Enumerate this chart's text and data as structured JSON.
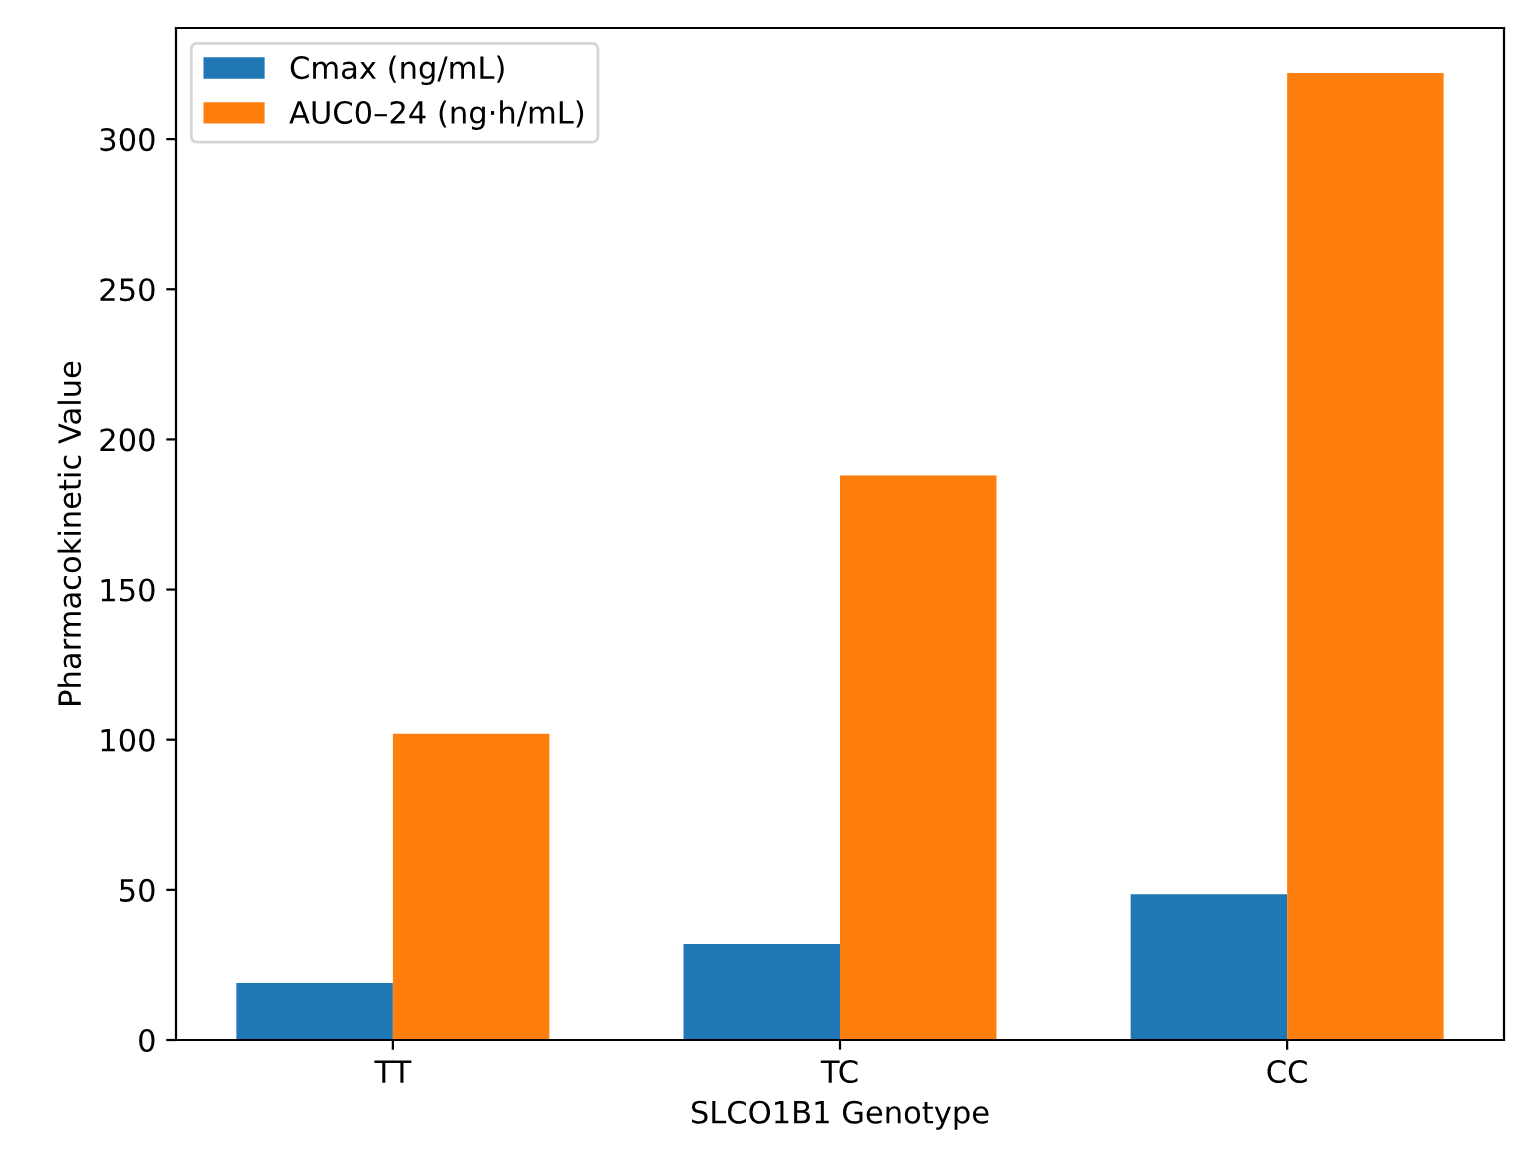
{
  "chart_data": {
    "type": "bar",
    "xlabel": "SLCO1B1 Genotype",
    "ylabel": "Pharmacokinetic Value",
    "categories": [
      "TT",
      "TC",
      "CC"
    ],
    "series": [
      {
        "name": "Cmax (ng/mL)",
        "color": "#1f77b4",
        "values": [
          19,
          32,
          48.5
        ]
      },
      {
        "name": "AUC0–24 (ng·h/mL)",
        "color": "#ff7f0e",
        "values": [
          102,
          188,
          322
        ]
      }
    ],
    "ylim": [
      0,
      337
    ],
    "yticks": [
      0,
      50,
      100,
      150,
      200,
      250,
      300
    ],
    "legend": "top left",
    "grid": false
  }
}
